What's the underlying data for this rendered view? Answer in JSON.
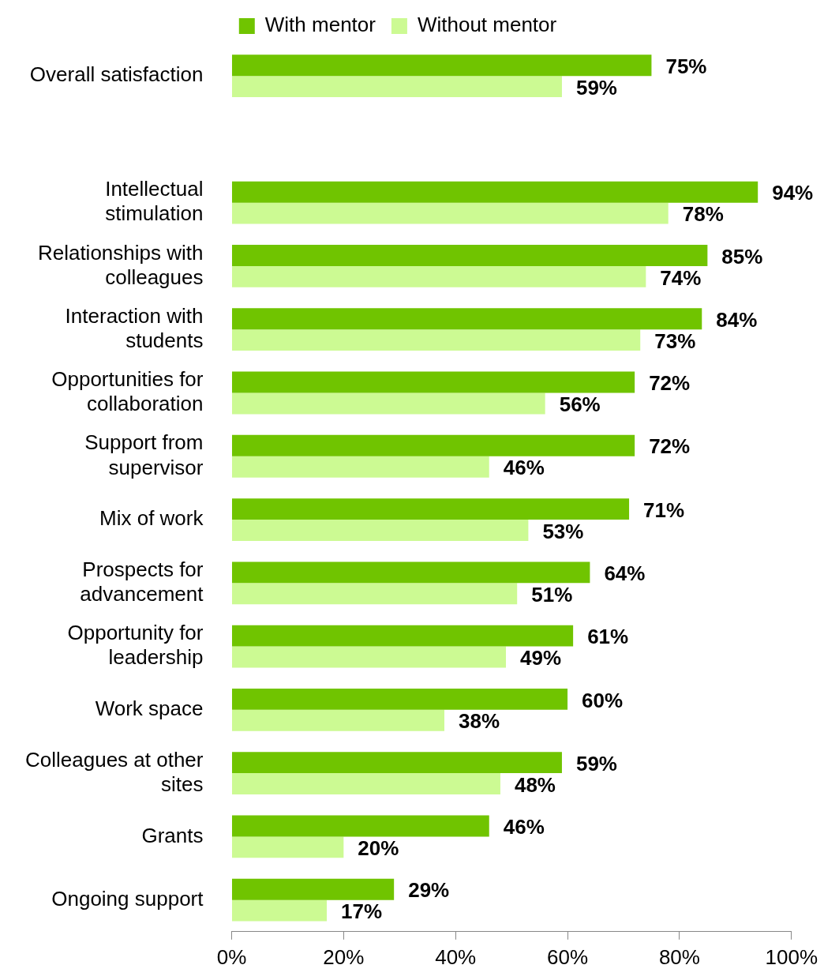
{
  "chart_data": {
    "type": "bar",
    "orientation": "horizontal",
    "categories": [
      "Overall satisfaction",
      null,
      "Intellectual stimulation",
      "Relationships with colleagues",
      "Interaction with students",
      "Opportunities for collaboration",
      "Support from supervisor",
      "Mix of work",
      "Prospects for advancement",
      "Opportunity for leadership",
      "Work space",
      "Colleagues at other sites",
      "Grants",
      "Ongoing support"
    ],
    "series": [
      {
        "name": "With mentor",
        "color": "#70c400",
        "values": [
          75,
          null,
          94,
          85,
          84,
          72,
          72,
          71,
          64,
          61,
          60,
          59,
          46,
          29
        ],
        "value_labels": [
          "75%",
          null,
          "94%",
          "85%",
          "84%",
          "72%",
          "72%",
          "71%",
          "64%",
          "61%",
          "60%",
          "59%",
          "46%",
          "29%"
        ]
      },
      {
        "name": "Without mentor",
        "color": "#ccfa93",
        "values": [
          59,
          null,
          78,
          74,
          73,
          56,
          46,
          53,
          51,
          49,
          38,
          48,
          20,
          17
        ],
        "value_labels": [
          "59%",
          null,
          "78%",
          "74%",
          "73%",
          "56%",
          "46%",
          "53%",
          "51%",
          "49%",
          "38%",
          "48%",
          "20%",
          "17%"
        ]
      }
    ],
    "xlim": [
      0,
      100
    ],
    "xticks": [
      {
        "value": 0,
        "label": "0%"
      },
      {
        "value": 20,
        "label": "20%"
      },
      {
        "value": 40,
        "label": "40%"
      },
      {
        "value": 60,
        "label": "60%"
      },
      {
        "value": 80,
        "label": "80%"
      },
      {
        "value": 100,
        "label": "100%"
      }
    ],
    "grid": false,
    "legend": "top"
  }
}
